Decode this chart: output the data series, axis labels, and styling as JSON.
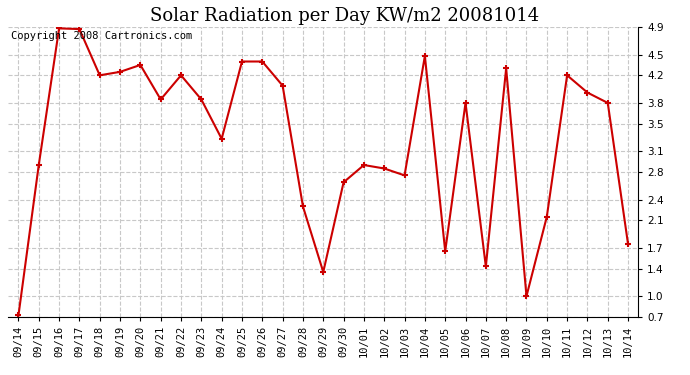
{
  "title": "Solar Radiation per Day KW/m2 20081014",
  "copyright_text": "Copyright 2008 Cartronics.com",
  "labels": [
    "09/14",
    "09/15",
    "09/16",
    "09/17",
    "09/18",
    "09/19",
    "09/20",
    "09/21",
    "09/22",
    "09/23",
    "09/24",
    "09/25",
    "09/26",
    "09/27",
    "09/28",
    "09/29",
    "09/30",
    "10/01",
    "10/02",
    "10/03",
    "10/04",
    "10/05",
    "10/06",
    "10/07",
    "10/08",
    "10/09",
    "10/10",
    "10/11",
    "10/12",
    "10/13",
    "10/14"
  ],
  "values": [
    0.72,
    2.9,
    4.88,
    4.87,
    4.2,
    4.25,
    4.35,
    3.85,
    4.2,
    3.85,
    3.28,
    4.4,
    4.4,
    4.05,
    2.3,
    1.35,
    2.65,
    2.9,
    2.85,
    2.75,
    4.48,
    1.65,
    3.8,
    1.43,
    4.3,
    1.0,
    2.15,
    4.2,
    3.95,
    3.8,
    1.75
  ],
  "line_color": "#cc0000",
  "marker_color": "#cc0000",
  "bg_color": "#ffffff",
  "grid_color": "#c8c8c8",
  "ylim": [
    0.7,
    4.9
  ],
  "yticks": [
    0.7,
    1.0,
    1.4,
    1.7,
    2.1,
    2.4,
    2.8,
    3.1,
    3.5,
    3.8,
    4.2,
    4.5,
    4.9
  ],
  "title_fontsize": 13,
  "copyright_fontsize": 7.5,
  "tick_fontsize": 7.5
}
